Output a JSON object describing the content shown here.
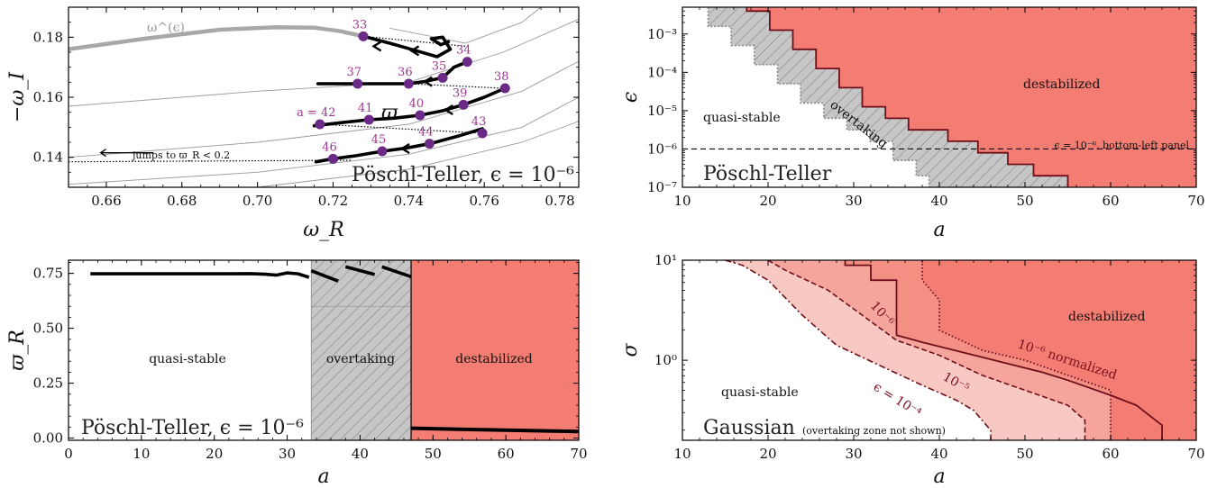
{
  "chart_data": [
    {
      "panel": "top-left",
      "type": "line",
      "xlabel": "ω_R",
      "ylabel": "−ω_I",
      "xlim": [
        0.65,
        0.785
      ],
      "ylim": [
        0.13,
        0.19
      ],
      "xticks": [
        "0.66",
        "0.68",
        "0.70",
        "0.72",
        "0.74",
        "0.76",
        "0.78"
      ],
      "yticks": [
        "0.14",
        "0.16",
        "0.18"
      ],
      "annotation_title": "Pöschl-Teller, ϵ = 10⁻⁶",
      "curve_label_gray": "ω^(ϵ)",
      "curve_label_main": "ϖ",
      "jump_note": "jumps to ϖ_R < 0.2",
      "gray_curve": [
        [
          0.65,
          0.176
        ],
        [
          0.67,
          0.1795
        ],
        [
          0.69,
          0.1825
        ],
        [
          0.705,
          0.1833
        ],
        [
          0.715,
          0.1832
        ],
        [
          0.722,
          0.182
        ],
        [
          0.728,
          0.1803
        ]
      ],
      "points": [
        {
          "label": "33",
          "x": 0.728,
          "y": 0.1803
        },
        {
          "label": "34",
          "x": 0.7555,
          "y": 0.1718
        },
        {
          "label": "35",
          "x": 0.749,
          "y": 0.1665
        },
        {
          "label": "36",
          "x": 0.74,
          "y": 0.1645
        },
        {
          "label": "37",
          "x": 0.7265,
          "y": 0.1645
        },
        {
          "label": "38",
          "x": 0.7655,
          "y": 0.163
        },
        {
          "label": "39",
          "x": 0.7545,
          "y": 0.1575
        },
        {
          "label": "40",
          "x": 0.743,
          "y": 0.154
        },
        {
          "label": "41",
          "x": 0.7295,
          "y": 0.1525
        },
        {
          "label": "a = 42",
          "x": 0.7165,
          "y": 0.151
        },
        {
          "label": "43",
          "x": 0.7595,
          "y": 0.148
        },
        {
          "label": "44",
          "x": 0.7455,
          "y": 0.1445
        },
        {
          "label": "45",
          "x": 0.733,
          "y": 0.142
        },
        {
          "label": "46",
          "x": 0.72,
          "y": 0.1395
        }
      ]
    },
    {
      "panel": "top-right",
      "type": "area",
      "xlabel": "a",
      "ylabel": "ϵ",
      "xlim": [
        10,
        70
      ],
      "ylim_log10": [
        -7,
        -2.3
      ],
      "xticks": [
        "10",
        "20",
        "30",
        "40",
        "50",
        "60",
        "70"
      ],
      "yticks": [
        "10⁻⁷",
        "10⁻⁶",
        "10⁻⁵",
        "10⁻⁴",
        "10⁻³"
      ],
      "regions": [
        "quasi-stable",
        "overtaking",
        "destabilized"
      ],
      "annotation_title": "Pöschl-Teller",
      "hline_label": "ϵ = 10⁻⁶, bottom-left panel",
      "destab_boundary": [
        [
          17.5,
          -2.3
        ],
        [
          17.5,
          -2.4
        ],
        [
          20.2,
          -2.4
        ],
        [
          20.2,
          -2.9
        ],
        [
          22.9,
          -2.9
        ],
        [
          22.9,
          -3.4
        ],
        [
          25.6,
          -3.4
        ],
        [
          25.6,
          -3.9
        ],
        [
          28.3,
          -3.9
        ],
        [
          28.3,
          -4.4
        ],
        [
          31.0,
          -4.4
        ],
        [
          31.0,
          -4.9
        ],
        [
          33.7,
          -4.9
        ],
        [
          33.7,
          -5.2
        ],
        [
          36.4,
          -5.2
        ],
        [
          36.4,
          -5.5
        ],
        [
          41.0,
          -5.5
        ],
        [
          41.0,
          -5.8
        ],
        [
          44.5,
          -5.8
        ],
        [
          44.5,
          -6.1
        ],
        [
          48.0,
          -6.1
        ],
        [
          48.0,
          -6.4
        ],
        [
          51.0,
          -6.4
        ],
        [
          51.0,
          -6.7
        ],
        [
          55.0,
          -6.7
        ],
        [
          55.0,
          -7.0
        ]
      ],
      "overtake_boundary": [
        [
          13.0,
          -2.3
        ],
        [
          13.0,
          -2.8
        ],
        [
          15.7,
          -2.8
        ],
        [
          15.7,
          -3.3
        ],
        [
          18.4,
          -3.3
        ],
        [
          18.4,
          -3.8
        ],
        [
          21.1,
          -3.8
        ],
        [
          21.1,
          -4.3
        ],
        [
          23.8,
          -4.3
        ],
        [
          23.8,
          -4.8
        ],
        [
          26.5,
          -4.8
        ],
        [
          26.5,
          -5.2
        ],
        [
          29.2,
          -5.2
        ],
        [
          29.2,
          -5.5
        ],
        [
          31.9,
          -5.5
        ],
        [
          31.9,
          -5.8
        ],
        [
          34.6,
          -5.8
        ],
        [
          34.6,
          -6.3
        ],
        [
          37.3,
          -6.3
        ],
        [
          37.3,
          -6.7
        ],
        [
          38.8,
          -6.7
        ],
        [
          38.8,
          -7.0
        ]
      ]
    },
    {
      "panel": "bottom-left",
      "type": "line",
      "xlabel": "a",
      "ylabel": "ϖ_R",
      "xlim": [
        0,
        70
      ],
      "ylim": [
        -0.01,
        0.81
      ],
      "xticks": [
        "0",
        "10",
        "20",
        "30",
        "40",
        "50",
        "60",
        "70"
      ],
      "yticks": [
        "0.00",
        "0.25",
        "0.50",
        "0.75"
      ],
      "regions": [
        "quasi-stable",
        "overtaking",
        "destabilized"
      ],
      "overtaking_range": [
        33.3,
        47.0
      ],
      "annotation_title": "Pöschl-Teller, ϵ = 10⁻⁶",
      "series_main": [
        [
          3,
          0.748
        ],
        [
          10,
          0.748
        ],
        [
          20,
          0.748
        ],
        [
          25,
          0.749
        ],
        [
          27,
          0.746
        ],
        [
          28.5,
          0.742
        ],
        [
          30,
          0.752
        ],
        [
          31.5,
          0.748
        ],
        [
          33,
          0.732
        ]
      ],
      "series_segments": [
        [
          [
            33.3,
            0.762
          ],
          [
            37,
            0.715
          ]
        ],
        [
          [
            38,
            0.78
          ],
          [
            42,
            0.745
          ]
        ],
        [
          [
            43,
            0.78
          ],
          [
            47,
            0.735
          ]
        ]
      ],
      "series_low": [
        [
          47,
          0.045
        ],
        [
          60,
          0.036
        ],
        [
          70,
          0.03
        ]
      ]
    },
    {
      "panel": "bottom-right",
      "type": "area",
      "xlabel": "a",
      "ylabel": "σ",
      "xlim": [
        10,
        70
      ],
      "ylim_log10": [
        -0.8,
        1.0
      ],
      "xticks": [
        "10",
        "20",
        "30",
        "40",
        "50",
        "60",
        "70"
      ],
      "yticks": [
        "10⁰",
        "10¹"
      ],
      "annotation_title": "Gaussian",
      "annotation_note": "(overtaking zone not shown)",
      "regions": [
        "quasi-stable",
        "destabilized"
      ],
      "contour_labels": [
        "10⁻⁶",
        "10⁻⁶ normalized",
        "10⁻⁵",
        "ϵ = 10⁻⁴"
      ],
      "solid_boundary": [
        [
          29,
          1.0
        ],
        [
          29,
          0.95
        ],
        [
          32,
          0.95
        ],
        [
          32,
          0.8
        ],
        [
          35,
          0.8
        ],
        [
          35,
          0.25
        ],
        [
          38,
          0.18
        ],
        [
          45,
          0.03
        ],
        [
          52,
          -0.12
        ],
        [
          55,
          -0.2
        ],
        [
          60,
          -0.35
        ],
        [
          63,
          -0.45
        ],
        [
          66,
          -0.65
        ],
        [
          66,
          -0.8
        ]
      ],
      "dotted_boundary": [
        [
          38,
          1.0
        ],
        [
          38,
          0.8
        ],
        [
          40,
          0.6
        ],
        [
          40,
          0.3
        ],
        [
          45,
          0.1
        ],
        [
          50,
          0.0
        ],
        [
          55,
          -0.15
        ],
        [
          60,
          -0.3
        ],
        [
          60,
          -0.8
        ]
      ],
      "dashed_boundary": [
        [
          20,
          1.0
        ],
        [
          22,
          0.9
        ],
        [
          27,
          0.7
        ],
        [
          31,
          0.45
        ],
        [
          35,
          0.2
        ],
        [
          40,
          0.05
        ],
        [
          45,
          -0.15
        ],
        [
          50,
          -0.3
        ],
        [
          55,
          -0.45
        ],
        [
          57,
          -0.6
        ],
        [
          57,
          -0.8
        ]
      ],
      "dashdot_boundary": [
        [
          15,
          1.0
        ],
        [
          17,
          0.95
        ],
        [
          20,
          0.8
        ],
        [
          24,
          0.45
        ],
        [
          28,
          0.15
        ],
        [
          33,
          -0.05
        ],
        [
          38,
          -0.25
        ],
        [
          42,
          -0.4
        ],
        [
          44,
          -0.5
        ],
        [
          46,
          -0.7
        ],
        [
          46,
          -0.8
        ]
      ]
    }
  ],
  "colors": {
    "destabilized": "#f37d72",
    "destabilized_light": "#f5a59c",
    "destabilized_pale": "#f8c8c2",
    "overtaking": "#c6c6c6",
    "boundary": "#6e0f1b",
    "points": "#6b2a85",
    "point_labels": "#9b3a8f",
    "gray_curve": "#a8a8a8"
  }
}
